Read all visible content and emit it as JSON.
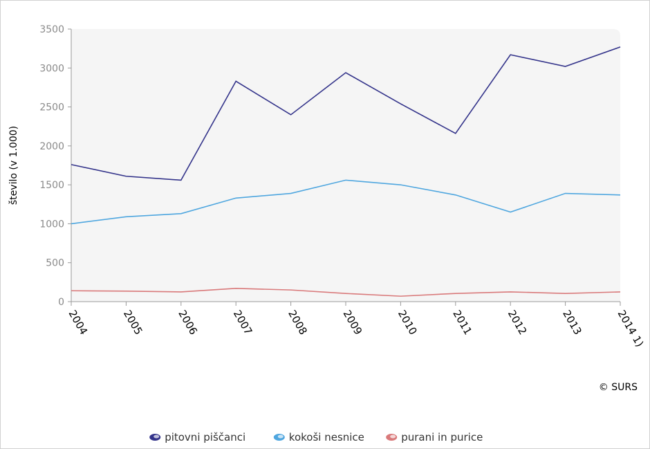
{
  "chart_data": {
    "type": "line",
    "y_label": "število (v 1.000)",
    "credit": "© SURS",
    "categories": [
      "2004",
      "2005",
      "2006",
      "2007",
      "2008",
      "2009",
      "2010",
      "2011",
      "2012",
      "2013",
      "2014 1)"
    ],
    "series": [
      {
        "name": "pitovni piščanci",
        "color": "#33338a",
        "values": [
          1760,
          1610,
          1560,
          2830,
          2400,
          2940,
          2540,
          2160,
          3170,
          3020,
          3270
        ]
      },
      {
        "name": "kokoši nesnice",
        "color": "#4ea6df",
        "values": [
          1000,
          1090,
          1130,
          1330,
          1390,
          1560,
          1500,
          1370,
          1150,
          1390,
          1370
        ]
      },
      {
        "name": "purani in purice",
        "color": "#d9797a",
        "values": [
          140,
          135,
          125,
          170,
          150,
          105,
          70,
          105,
          125,
          105,
          125
        ]
      }
    ],
    "ylim": [
      0,
      3500
    ],
    "yticks": [
      0,
      500,
      1000,
      1500,
      2000,
      2500,
      3000,
      3500
    ]
  }
}
